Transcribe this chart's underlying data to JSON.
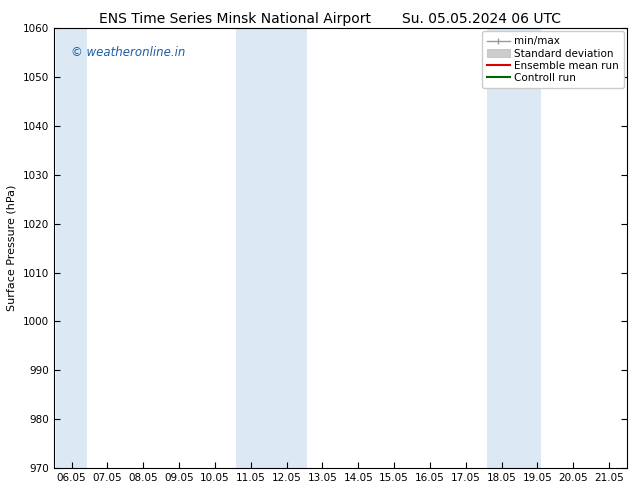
{
  "title_left": "ENS Time Series Minsk National Airport",
  "title_right": "Su. 05.05.2024 06 UTC",
  "ylabel": "Surface Pressure (hPa)",
  "ylim": [
    970,
    1060
  ],
  "yticks": [
    970,
    980,
    990,
    1000,
    1010,
    1020,
    1030,
    1040,
    1050,
    1060
  ],
  "xtick_labels": [
    "06.05",
    "07.05",
    "08.05",
    "09.05",
    "10.05",
    "11.05",
    "12.05",
    "13.05",
    "14.05",
    "15.05",
    "16.05",
    "17.05",
    "18.05",
    "19.05",
    "20.05",
    "21.05"
  ],
  "xtick_positions": [
    0,
    1,
    2,
    3,
    4,
    5,
    6,
    7,
    8,
    9,
    10,
    11,
    12,
    13,
    14,
    15
  ],
  "shaded_bands": [
    {
      "xmin": -0.42,
      "xmax": 0.42
    },
    {
      "xmin": 4.6,
      "xmax": 6.58
    },
    {
      "xmin": 11.6,
      "xmax": 13.1
    }
  ],
  "band_color": "#dce9f5",
  "watermark": "© weatheronline.in",
  "watermark_color": "#1a5fa8",
  "legend_labels": [
    "min/max",
    "Standard deviation",
    "Ensemble mean run",
    "Controll run"
  ],
  "legend_colors_line": [
    "#999999",
    "#bbbbbb",
    "#dd0000",
    "#006600"
  ],
  "bg_color": "#ffffff",
  "title_fontsize": 10,
  "axis_label_fontsize": 8,
  "tick_fontsize": 7.5,
  "legend_fontsize": 7.5,
  "watermark_fontsize": 8.5,
  "xlim": [
    -0.5,
    15.5
  ]
}
